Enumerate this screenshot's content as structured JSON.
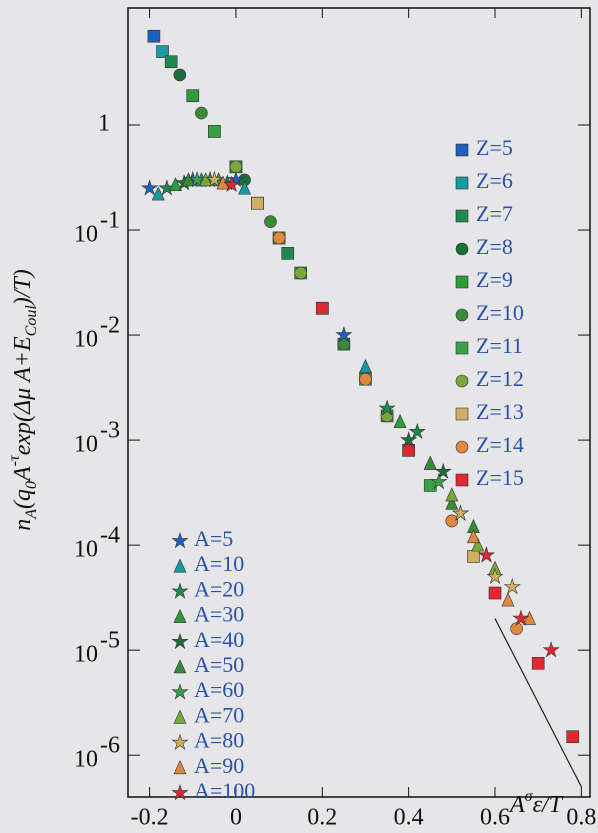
{
  "chart_data": {
    "type": "scatter",
    "xlabel": [
      {
        "text": "A",
        "style": "normal"
      },
      {
        "text": "σ",
        "style": "sup"
      },
      {
        "text": "ε/T",
        "style": "normal"
      }
    ],
    "ylabel": [
      {
        "text": "n",
        "style": "normal"
      },
      {
        "text": "A",
        "style": "sub"
      },
      {
        "text": "(q",
        "style": "normal"
      },
      {
        "text": "0",
        "style": "sub"
      },
      {
        "text": "A",
        "style": "normal"
      },
      {
        "text": "-τ",
        "style": "sup"
      },
      {
        "text": "exp(Δμ A+E",
        "style": "normal"
      },
      {
        "text": "Coul",
        "style": "sub"
      },
      {
        "text": ")/T)",
        "style": "normal"
      }
    ],
    "xlim": [
      -0.25,
      0.82
    ],
    "ylim": [
      4e-07,
      13
    ],
    "log_y": true,
    "xticks": [
      -0.2,
      0,
      0.2,
      0.4,
      0.6,
      0.8
    ],
    "yticks": [
      1,
      {
        "value": 0.1,
        "label": "10",
        "exponent": "-1"
      },
      {
        "value": 0.01,
        "label": "10",
        "exponent": "-2"
      },
      {
        "value": 0.001,
        "label": "10",
        "exponent": "-3"
      },
      {
        "value": 0.0001,
        "label": "10",
        "exponent": "-4"
      },
      {
        "value": 1e-05,
        "label": "10",
        "exponent": "-5"
      },
      {
        "value": 1e-06,
        "label": "10",
        "exponent": "-6"
      }
    ],
    "series": [
      {
        "name": "Z=5",
        "color": "#1f5fbf",
        "marker": "square",
        "x": [
          -0.19,
          -0.1,
          0.0,
          0.1
        ],
        "values": [
          7,
          1.9,
          0.4,
          0.084
        ]
      },
      {
        "name": "Z=6",
        "color": "#1a9aa0",
        "marker": "square",
        "x": [
          -0.17,
          -0.05,
          0.05,
          0.15
        ],
        "values": [
          5,
          0.87,
          0.18,
          0.039
        ]
      },
      {
        "name": "Z=7",
        "color": "#1e8a50",
        "marker": "square",
        "x": [
          -0.15,
          0.0,
          0.12,
          0.25
        ],
        "values": [
          4,
          0.4,
          0.06,
          0.0082
        ]
      },
      {
        "name": "Z=8",
        "color": "#1c6e3a",
        "marker": "circle",
        "x": [
          -0.13,
          0.02,
          0.15,
          0.3
        ],
        "values": [
          3,
          0.3,
          0.039,
          0.0038
        ]
      },
      {
        "name": "Z=9",
        "color": "#2e9a3e",
        "marker": "square",
        "x": [
          -0.1,
          0.05,
          0.2,
          0.35
        ],
        "values": [
          1.9,
          0.18,
          0.018,
          0.0017
        ]
      },
      {
        "name": "Z=10",
        "color": "#3a8a3a",
        "marker": "circle",
        "x": [
          -0.08,
          0.08,
          0.25,
          0.4
        ],
        "values": [
          1.3,
          0.12,
          0.0082,
          0.0008
        ]
      },
      {
        "name": "Z=11",
        "color": "#3aa048",
        "marker": "square",
        "x": [
          -0.05,
          0.1,
          0.3,
          0.45
        ],
        "values": [
          0.87,
          0.084,
          0.0038,
          0.00037
        ]
      },
      {
        "name": "Z=12",
        "color": "#7aa838",
        "marker": "circle",
        "x": [
          0.0,
          0.15,
          0.35,
          0.5
        ],
        "values": [
          0.4,
          0.039,
          0.0017,
          0.00017
        ]
      },
      {
        "name": "Z=13",
        "color": "#d0b060",
        "marker": "square",
        "x": [
          0.05,
          0.2,
          0.4,
          0.55
        ],
        "values": [
          0.18,
          0.018,
          0.0008,
          7.8e-05
        ]
      },
      {
        "name": "Z=14",
        "color": "#e08840",
        "marker": "circle",
        "x": [
          0.1,
          0.3,
          0.5,
          0.65
        ],
        "values": [
          0.084,
          0.0038,
          0.00017,
          1.6e-05
        ]
      },
      {
        "name": "Z=15",
        "color": "#e02830",
        "marker": "square",
        "x": [
          0.2,
          0.4,
          0.6,
          0.7,
          0.78
        ],
        "values": [
          0.018,
          0.0008,
          3.5e-05,
          7.5e-06,
          1.5e-06
        ]
      },
      {
        "name": "A=5",
        "color": "#1f5fbf",
        "marker": "star",
        "x": [
          -0.2,
          -0.1,
          0.0,
          0.25
        ],
        "values": [
          0.25,
          0.3,
          0.3,
          0.01
        ]
      },
      {
        "name": "A=10",
        "color": "#1a9aa0",
        "marker": "triangle",
        "x": [
          -0.18,
          -0.08,
          0.02,
          0.3
        ],
        "values": [
          0.22,
          0.3,
          0.25,
          0.005
        ]
      },
      {
        "name": "A=20",
        "color": "#1e8a50",
        "marker": "star",
        "x": [
          -0.16,
          -0.06,
          0.35,
          0.42
        ],
        "values": [
          0.25,
          0.3,
          0.002,
          0.0012
        ]
      },
      {
        "name": "A=30",
        "color": "#2e9a3e",
        "marker": "triangle",
        "x": [
          -0.14,
          -0.04,
          0.38,
          0.45
        ],
        "values": [
          0.27,
          0.3,
          0.0015,
          0.0006
        ]
      },
      {
        "name": "A=40",
        "color": "#1c6e3a",
        "marker": "star",
        "x": [
          -0.12,
          -0.02,
          0.4,
          0.48
        ],
        "values": [
          0.28,
          0.28,
          0.001,
          0.0005
        ]
      },
      {
        "name": "A=50",
        "color": "#3a8a3a",
        "marker": "triangle",
        "x": [
          -0.11,
          0.45,
          0.5,
          0.55
        ],
        "values": [
          0.3,
          0.0006,
          0.00025,
          0.00015
        ]
      },
      {
        "name": "A=60",
        "color": "#3aa048",
        "marker": "star",
        "x": [
          -0.09,
          0.47,
          0.52,
          0.58
        ],
        "values": [
          0.3,
          0.0004,
          0.0002,
          8e-05
        ]
      },
      {
        "name": "A=70",
        "color": "#7aa838",
        "marker": "triangle",
        "x": [
          -0.07,
          0.5,
          0.56,
          0.6
        ],
        "values": [
          0.3,
          0.0003,
          0.0001,
          6e-05
        ]
      },
      {
        "name": "A=80",
        "color": "#d0b060",
        "marker": "star",
        "x": [
          -0.05,
          0.52,
          0.6,
          0.64
        ],
        "values": [
          0.3,
          0.0002,
          5e-05,
          4e-05
        ]
      },
      {
        "name": "A=90",
        "color": "#e08840",
        "marker": "triangle",
        "x": [
          -0.03,
          0.55,
          0.63,
          0.68
        ],
        "values": [
          0.28,
          0.00012,
          3e-05,
          2e-05
        ]
      },
      {
        "name": "A=100",
        "color": "#e02830",
        "marker": "star",
        "x": [
          -0.01,
          0.58,
          0.66,
          0.73
        ],
        "values": [
          0.27,
          8e-05,
          2e-05,
          1e-05
        ]
      }
    ],
    "lines": [
      {
        "color": "#222222",
        "x": [
          0.6,
          0.8
        ],
        "values": [
          2e-05,
          5e-07
        ]
      }
    ]
  }
}
